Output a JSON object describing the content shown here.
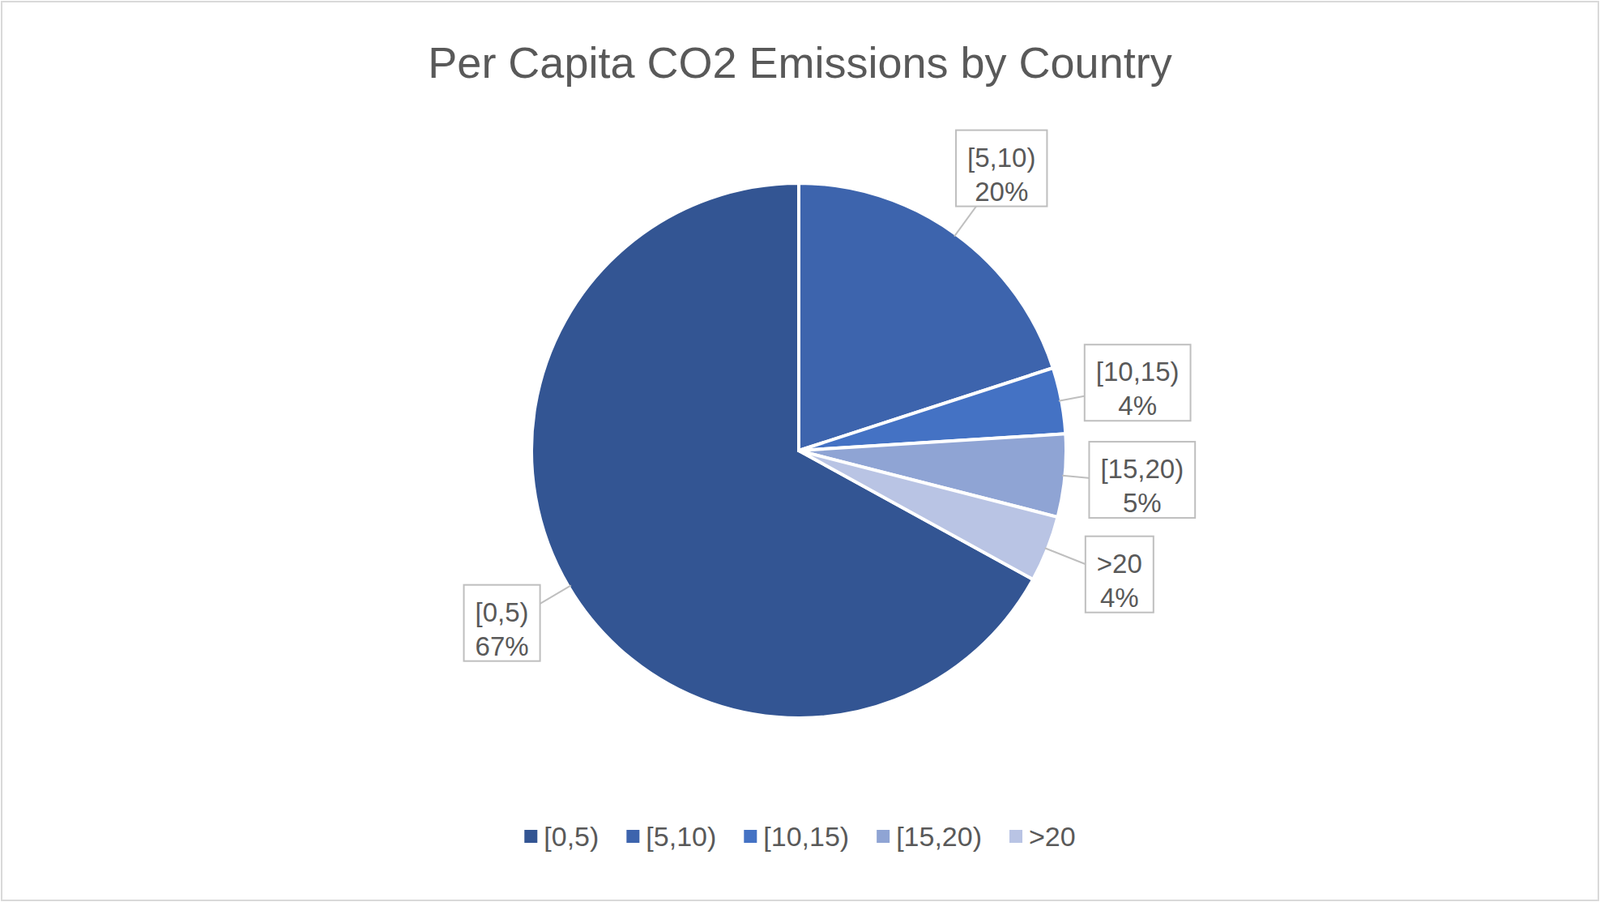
{
  "chart_data": {
    "type": "pie",
    "title": "Per Capita CO2 Emissions by Country",
    "categories": [
      "[0,5)",
      "[5,10)",
      "[10,15)",
      "[15,20)",
      ">20"
    ],
    "values": [
      67,
      20,
      4,
      5,
      4
    ],
    "value_labels": [
      "67%",
      "20%",
      "4%",
      "5%",
      "4%"
    ],
    "colors": [
      "#335593",
      "#3d64ad",
      "#4472c4",
      "#8fa4d4",
      "#b9c4e4"
    ],
    "data_labels": true,
    "legend": "bottom"
  }
}
